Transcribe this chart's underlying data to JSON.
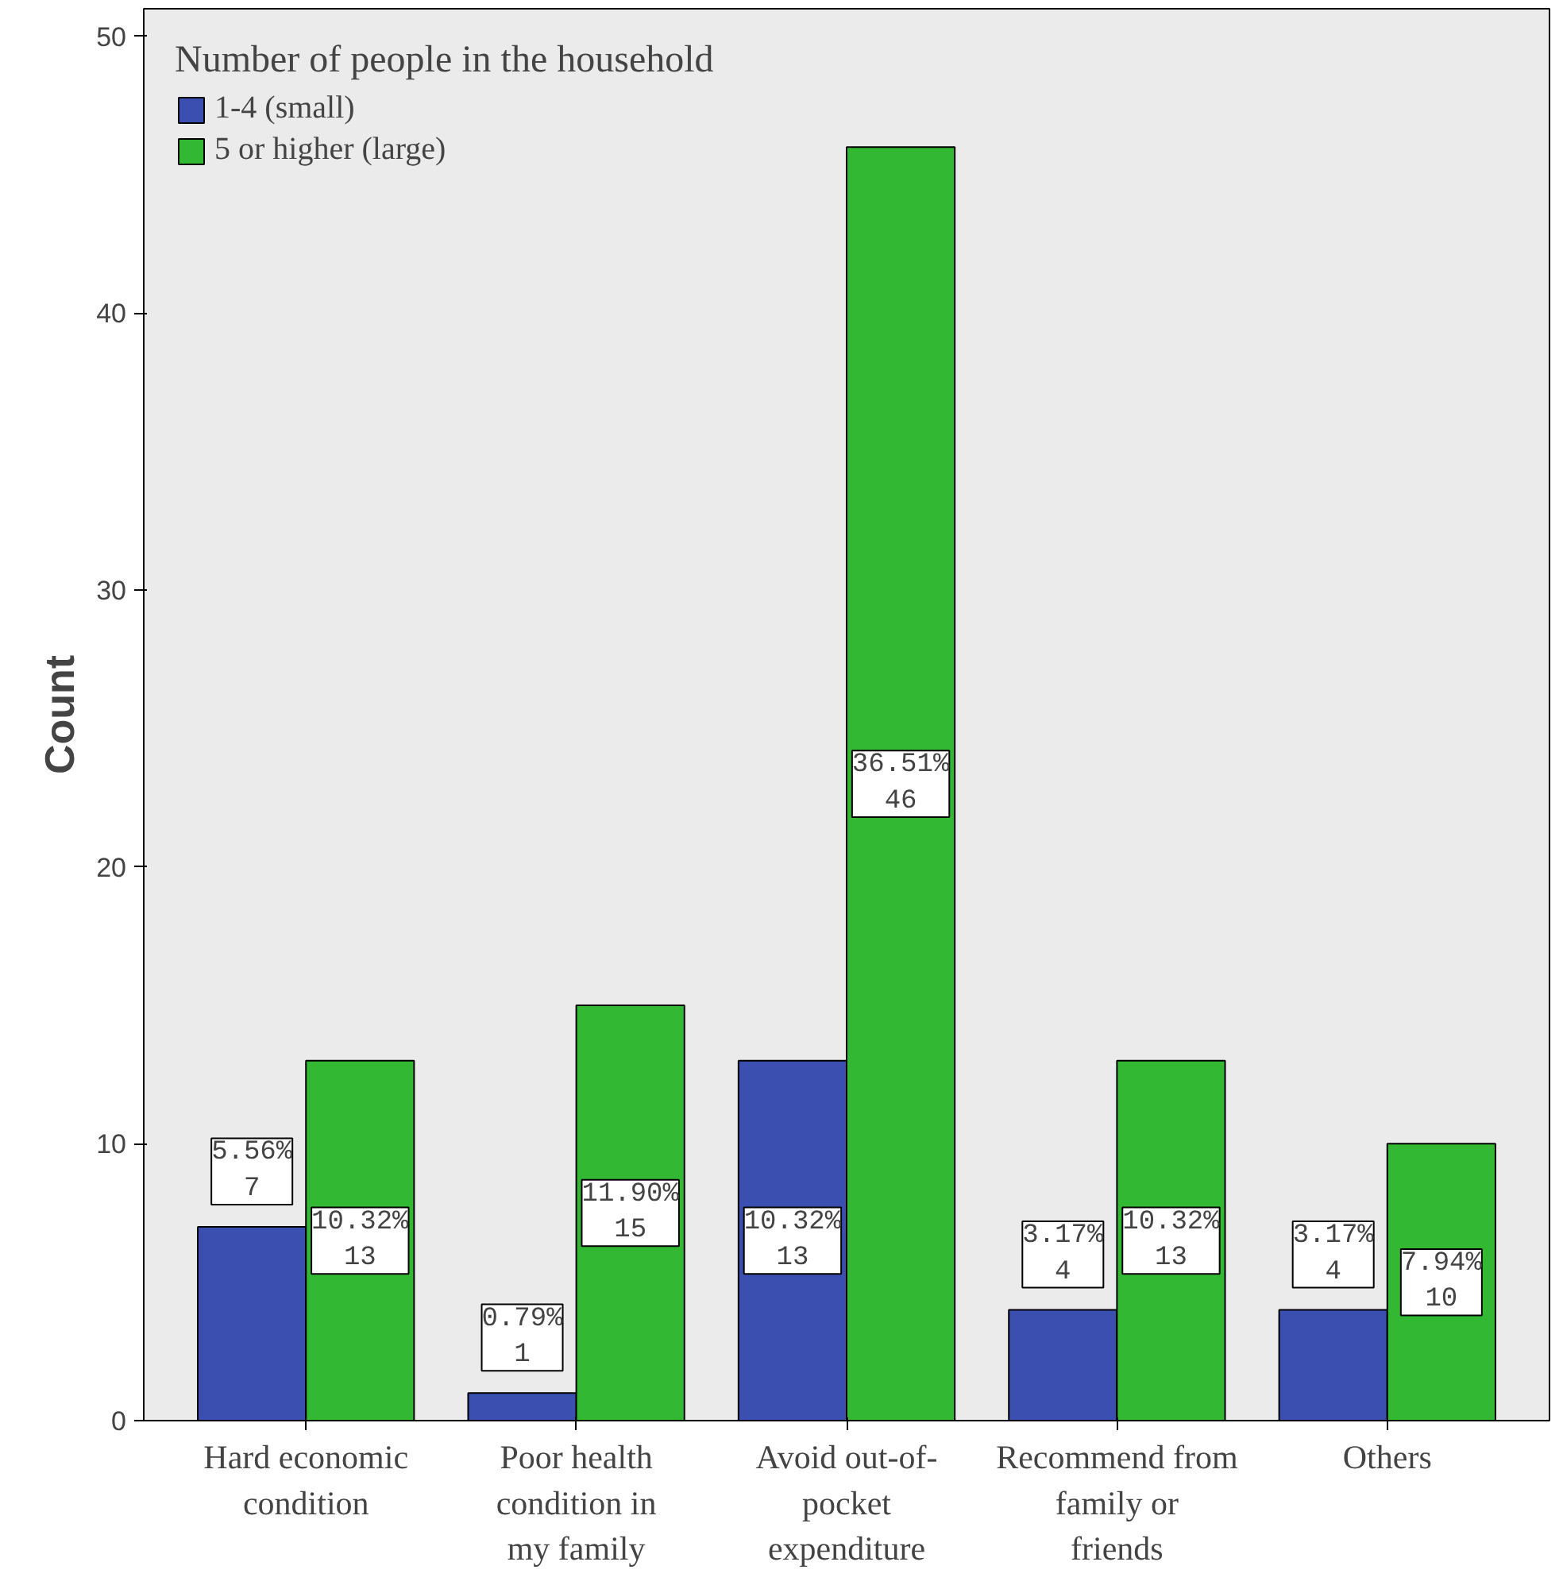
{
  "chart_data": {
    "type": "bar",
    "ylabel": "Count",
    "legend_title": "Number of people in the household",
    "categories": [
      "Hard economic condition",
      "Poor health condition in my family",
      "Avoid out-of-pocket expenditure",
      "Recommend from family or friends",
      "Others"
    ],
    "series": [
      {
        "name": "1-4 (small)",
        "color": "#3a4fb0",
        "values": [
          7,
          1,
          13,
          4,
          4
        ],
        "value_labels": [
          "5.56%\n7",
          "0.79%\n1",
          "10.32%\n13",
          "3.17%\n4",
          "3.17%\n4"
        ]
      },
      {
        "name": "5 or higher (large)",
        "color": "#33b833",
        "values": [
          13,
          15,
          46,
          13,
          10
        ],
        "value_labels": [
          "10.32%\n13",
          "11.90%\n15",
          "36.51%\n46",
          "10.32%\n13",
          "7.94%\n10"
        ]
      }
    ],
    "ylim": [
      0,
      51
    ],
    "yticks": [
      0,
      10,
      20,
      30,
      40,
      50
    ],
    "grid": false,
    "legend": "top left"
  }
}
